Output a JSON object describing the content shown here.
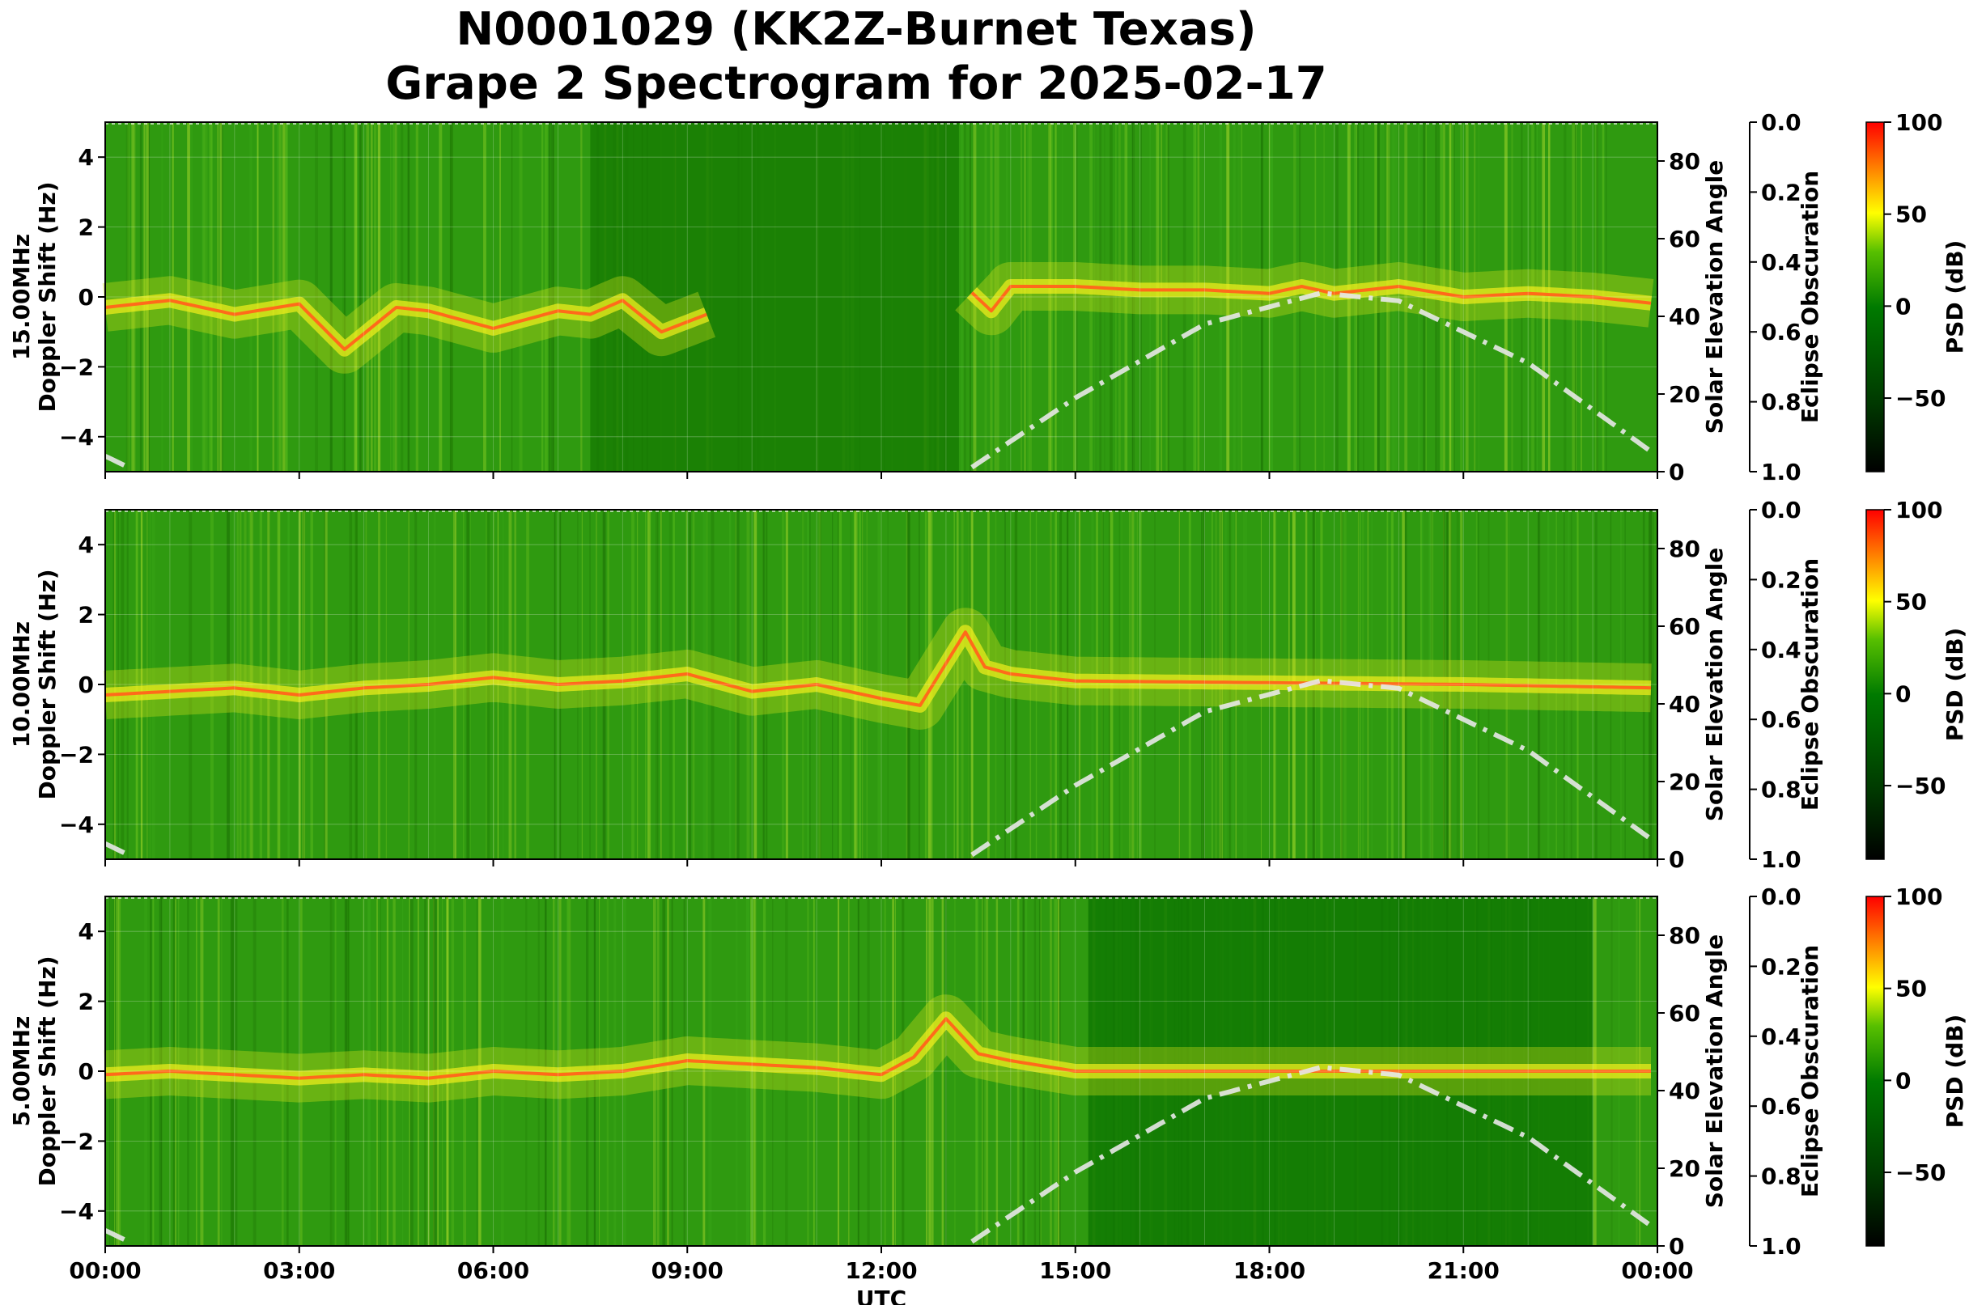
{
  "title": "N0001029 (KK2Z-Burnet Texas)",
  "subtitle": "Grape 2 Spectrogram for 2025-02-17",
  "colors": {
    "spectrogram_colormap": [
      "#000000",
      "#003a00",
      "#007a00",
      "#58c000",
      "#ffff00",
      "#ff0000"
    ],
    "solar_elevation_line": "#e8e8e8"
  },
  "chart_data": [
    {
      "type": "heatmap",
      "panel_label": "15.00MHz",
      "ylabel": "Doppler Shift (Hz)",
      "xlabel": "",
      "xlim": [
        "00:00",
        "24:00"
      ],
      "ylim": [
        -5,
        5
      ],
      "y_ticks": [
        "−4",
        "−2",
        "0",
        "2",
        "4"
      ],
      "x_ticks_shown": false,
      "grid": true,
      "colorbar": {
        "label": "PSD (dB)",
        "range": [
          -90,
          100
        ],
        "ticks": [
          "100",
          "50",
          "0",
          "−50"
        ]
      },
      "secondary_axis": {
        "label": "Solar Elevation Angle",
        "range": [
          0,
          90
        ],
        "ticks": [
          "0",
          "20",
          "40",
          "60",
          "80"
        ]
      },
      "eclipse_axis": {
        "label": "Eclipse Obscuration",
        "range": [
          0,
          1
        ],
        "inverted": true,
        "ticks": [
          "0.0",
          "0.2",
          "0.4",
          "0.6",
          "0.8",
          "1.0"
        ]
      },
      "doppler_trace": {
        "hours": [
          0,
          1,
          2,
          3,
          3.7,
          4.5,
          5,
          6,
          7,
          7.5,
          8,
          8.6,
          9.3,
          12,
          13.3,
          13.7,
          14,
          15,
          16,
          17,
          18,
          18.5,
          19,
          20,
          21,
          22,
          23,
          24
        ],
        "hz": [
          -0.3,
          -0.1,
          -0.5,
          -0.2,
          -1.5,
          -0.3,
          -0.4,
          -0.9,
          -0.4,
          -0.5,
          -0.1,
          -1.0,
          -0.5,
          null,
          0.3,
          -0.4,
          0.3,
          0.3,
          0.2,
          0.2,
          0.1,
          0.3,
          0.1,
          0.3,
          0.0,
          0.1,
          0.0,
          -0.2
        ]
      },
      "solar_elevation": {
        "hours": [
          0,
          0.5,
          13.3,
          15,
          17,
          18.8,
          20,
          22,
          24
        ],
        "degrees": [
          4,
          0,
          0,
          19,
          38,
          46,
          44,
          28,
          4
        ]
      }
    },
    {
      "type": "heatmap",
      "panel_label": "10.00MHz",
      "ylabel": "Doppler Shift (Hz)",
      "xlabel": "",
      "xlim": [
        "00:00",
        "24:00"
      ],
      "ylim": [
        -5,
        5
      ],
      "y_ticks": [
        "−4",
        "−2",
        "0",
        "2",
        "4"
      ],
      "x_ticks_shown": false,
      "grid": true,
      "colorbar": {
        "label": "PSD (dB)",
        "range": [
          -90,
          100
        ],
        "ticks": [
          "100",
          "50",
          "0",
          "−50"
        ]
      },
      "secondary_axis": {
        "label": "Solar Elevation Angle",
        "range": [
          0,
          90
        ],
        "ticks": [
          "0",
          "20",
          "40",
          "60",
          "80"
        ]
      },
      "eclipse_axis": {
        "label": "Eclipse Obscuration",
        "range": [
          0,
          1
        ],
        "inverted": true,
        "ticks": [
          "0.0",
          "0.2",
          "0.4",
          "0.6",
          "0.8",
          "1.0"
        ]
      },
      "doppler_trace": {
        "hours": [
          0,
          1,
          2,
          3,
          4,
          5,
          6,
          7,
          8,
          9,
          10,
          11,
          12,
          12.6,
          13.3,
          13.6,
          14,
          15,
          18,
          21,
          24
        ],
        "hz": [
          -0.3,
          -0.2,
          -0.1,
          -0.3,
          -0.1,
          0.0,
          0.2,
          0.0,
          0.1,
          0.3,
          -0.2,
          0.0,
          -0.4,
          -0.6,
          1.5,
          0.5,
          0.3,
          0.1,
          0.05,
          0.0,
          -0.1
        ]
      },
      "solar_elevation": {
        "hours": [
          0,
          0.5,
          13.3,
          15,
          17,
          18.8,
          20,
          22,
          24
        ],
        "degrees": [
          4,
          0,
          0,
          19,
          38,
          46,
          44,
          28,
          4
        ]
      }
    },
    {
      "type": "heatmap",
      "panel_label": "5.00MHz",
      "ylabel": "Doppler Shift (Hz)",
      "xlabel": "UTC",
      "xlim": [
        "00:00",
        "24:00"
      ],
      "ylim": [
        -5,
        5
      ],
      "y_ticks": [
        "−4",
        "−2",
        "0",
        "2",
        "4"
      ],
      "x_ticks": [
        "00:00",
        "03:00",
        "06:00",
        "09:00",
        "12:00",
        "15:00",
        "18:00",
        "21:00",
        "00:00"
      ],
      "x_ticks_shown": true,
      "grid": true,
      "colorbar": {
        "label": "PSD (dB)",
        "range": [
          -90,
          100
        ],
        "ticks": [
          "100",
          "50",
          "0",
          "−50"
        ]
      },
      "secondary_axis": {
        "label": "Solar Elevation Angle",
        "range": [
          0,
          90
        ],
        "ticks": [
          "0",
          "20",
          "40",
          "60",
          "80"
        ]
      },
      "eclipse_axis": {
        "label": "Eclipse Obscuration",
        "range": [
          0,
          1
        ],
        "inverted": true,
        "ticks": [
          "0.0",
          "0.2",
          "0.4",
          "0.6",
          "0.8",
          "1.0"
        ]
      },
      "doppler_trace": {
        "hours": [
          0,
          1,
          2,
          3,
          4,
          5,
          6,
          7,
          8,
          9,
          10,
          11,
          12,
          12.5,
          13,
          13.5,
          14,
          15,
          18,
          21,
          24
        ],
        "hz": [
          -0.1,
          0.0,
          -0.1,
          -0.2,
          -0.1,
          -0.2,
          0.0,
          -0.1,
          0.0,
          0.3,
          0.2,
          0.1,
          -0.1,
          0.4,
          1.5,
          0.5,
          0.3,
          0.0,
          0.0,
          0.0,
          0.0
        ]
      },
      "solar_elevation": {
        "hours": [
          0,
          0.5,
          13.3,
          15,
          17,
          18.8,
          20,
          22,
          24
        ],
        "degrees": [
          4,
          0,
          0,
          19,
          38,
          46,
          44,
          28,
          4
        ]
      }
    }
  ]
}
